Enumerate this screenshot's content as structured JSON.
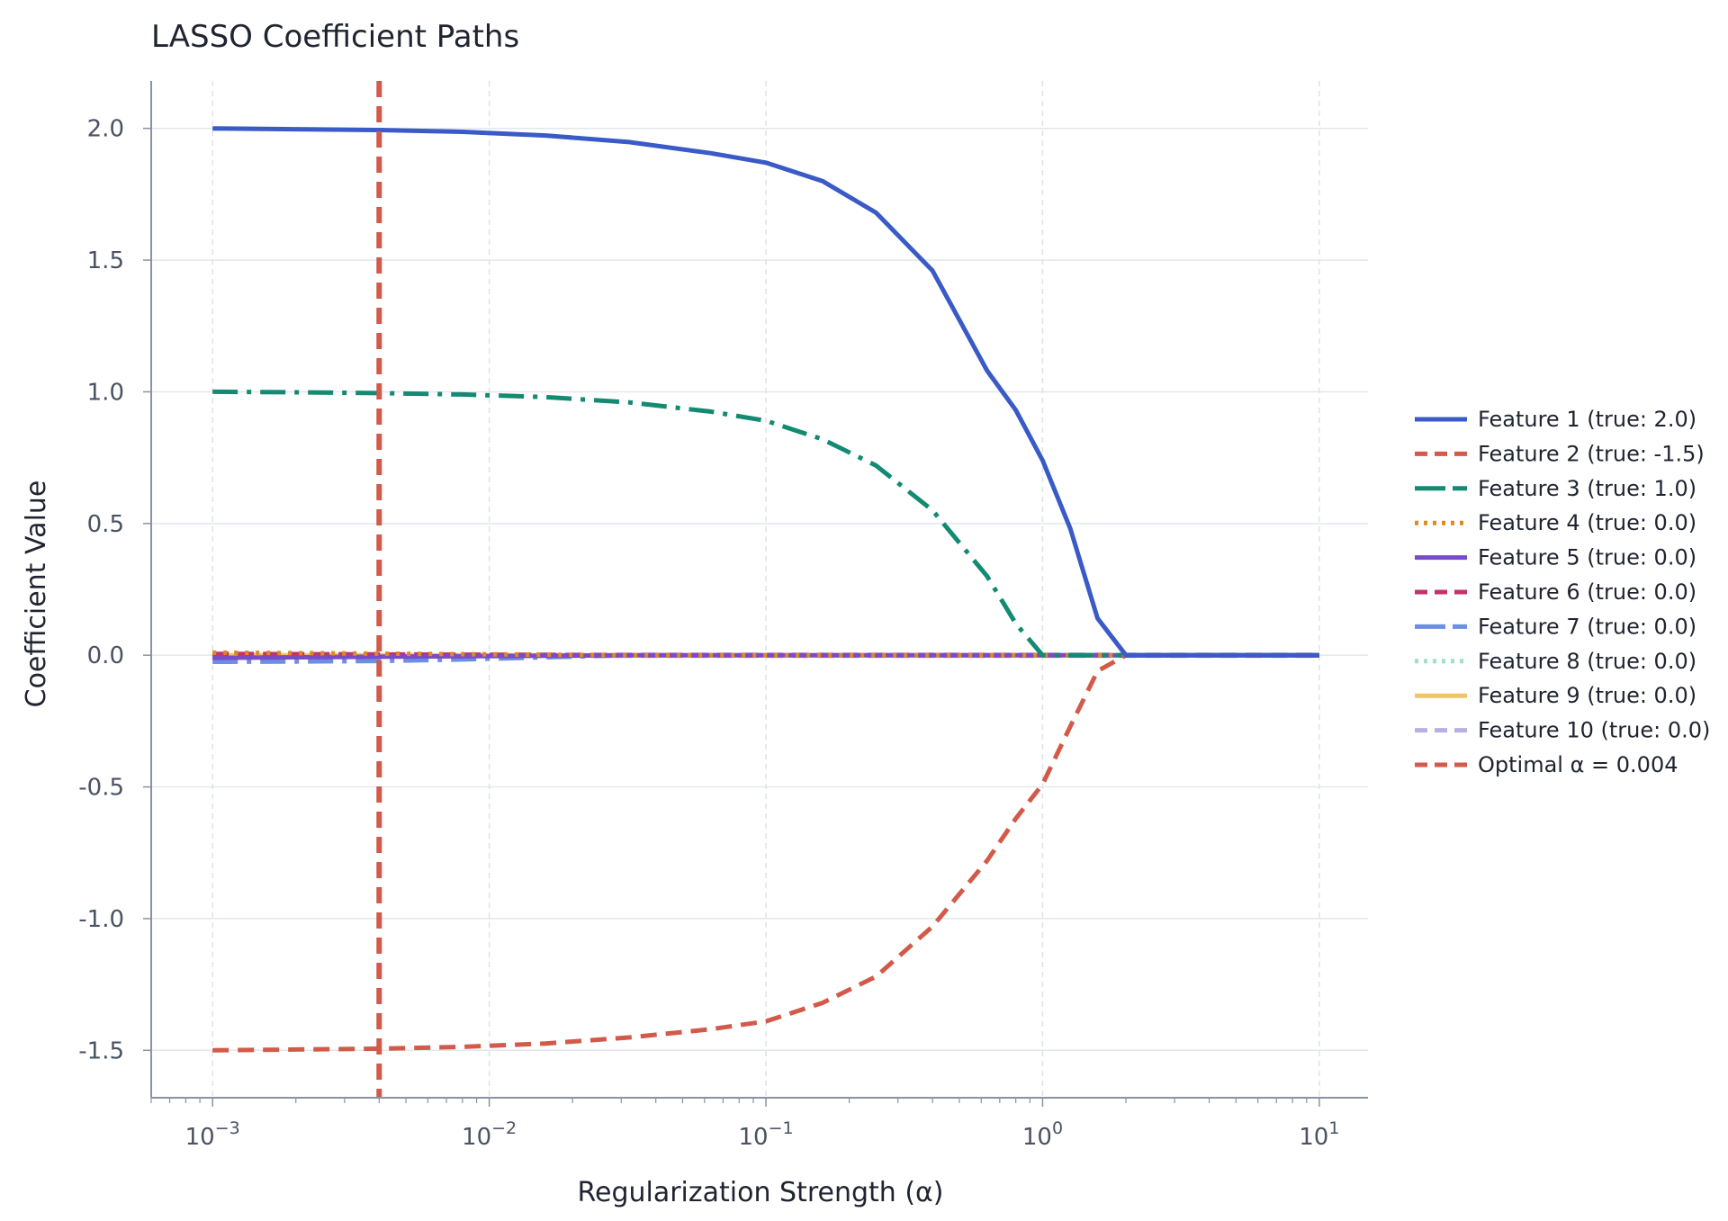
{
  "chart_data": {
    "type": "line",
    "title": "LASSO Coefficient Paths",
    "xlabel": "Regularization Strength (α)",
    "ylabel": "Coefficient Value",
    "x_scale": "log",
    "xlim": [
      0.0006,
      15
    ],
    "ylim": [
      -1.68,
      2.18
    ],
    "x_ticks": [
      0.001,
      0.01,
      0.1,
      1,
      10
    ],
    "x_tick_labels": [
      {
        "base": "10",
        "exp": "−3"
      },
      {
        "base": "10",
        "exp": "−2"
      },
      {
        "base": "10",
        "exp": "−1"
      },
      {
        "base": "10",
        "exp": "0"
      },
      {
        "base": "10",
        "exp": "1"
      }
    ],
    "y_ticks": [
      -1.5,
      -1.0,
      -0.5,
      0.0,
      0.5,
      1.0,
      1.5,
      2.0
    ],
    "y_tick_labels": [
      "-1.5",
      "-1.0",
      "-0.5",
      "0.0",
      "0.5",
      "1.0",
      "1.5",
      "2.0"
    ],
    "grid": true,
    "legend_position": "right",
    "x": [
      0.001,
      0.002,
      0.004,
      0.008,
      0.016,
      0.032,
      0.063,
      0.1,
      0.16,
      0.25,
      0.4,
      0.63,
      0.8,
      1.0,
      1.26,
      1.58,
      2.0,
      4.0,
      10.0
    ],
    "series": [
      {
        "name": "Feature 1 (true: 2.0)",
        "color": "#3a5bc7",
        "dash": "solid",
        "width": 5,
        "values": [
          2.0,
          1.997,
          1.994,
          1.987,
          1.973,
          1.948,
          1.906,
          1.87,
          1.8,
          1.68,
          1.46,
          1.08,
          0.93,
          0.74,
          0.48,
          0.14,
          0.0,
          0.0,
          0.0
        ]
      },
      {
        "name": "Feature 2 (true: -1.5)",
        "color": "#d25a4a",
        "dash": "18 10",
        "width": 5,
        "values": [
          -1.5,
          -1.497,
          -1.494,
          -1.487,
          -1.474,
          -1.451,
          -1.42,
          -1.39,
          -1.32,
          -1.22,
          -1.03,
          -0.78,
          -0.62,
          -0.49,
          -0.27,
          -0.06,
          0.0,
          0.0,
          0.0
        ]
      },
      {
        "name": "Feature 3 (true: 1.0)",
        "color": "#138a72",
        "dash": "28 10 5 10",
        "width": 5,
        "values": [
          1.0,
          0.998,
          0.995,
          0.99,
          0.98,
          0.96,
          0.925,
          0.89,
          0.82,
          0.72,
          0.55,
          0.3,
          0.12,
          0.0,
          0.0,
          0.0,
          0.0,
          0.0,
          0.0
        ]
      },
      {
        "name": "Feature 4 (true: 0.0)",
        "color": "#e08a1e",
        "dash": "4 8",
        "width": 5,
        "values": [
          0.01,
          0.008,
          0.006,
          0.004,
          0.002,
          0.0,
          0.0,
          0.0,
          0.0,
          0.0,
          0.0,
          0.0,
          0.0,
          0.0,
          0.0,
          0.0,
          0.0,
          0.0,
          0.0
        ]
      },
      {
        "name": "Feature 5 (true: 0.0)",
        "color": "#7a4bc7",
        "dash": "solid",
        "width": 5,
        "values": [
          -0.01,
          -0.008,
          -0.006,
          -0.004,
          -0.002,
          0.0,
          0.0,
          0.0,
          0.0,
          0.0,
          0.0,
          0.0,
          0.0,
          0.0,
          0.0,
          0.0,
          0.0,
          0.0,
          0.0
        ]
      },
      {
        "name": "Feature 6 (true: 0.0)",
        "color": "#c2336b",
        "dash": "18 10",
        "width": 5,
        "values": [
          0.005,
          0.004,
          0.003,
          0.002,
          0.001,
          0.0,
          0.0,
          0.0,
          0.0,
          0.0,
          0.0,
          0.0,
          0.0,
          0.0,
          0.0,
          0.0,
          0.0,
          0.0,
          0.0
        ]
      },
      {
        "name": "Feature 7 (true: 0.0)",
        "color": "#6b8ee6",
        "dash": "28 10 5 10",
        "width": 5,
        "values": [
          -0.025,
          -0.024,
          -0.022,
          -0.016,
          -0.008,
          0.0,
          0.0,
          0.0,
          0.0,
          0.0,
          0.0,
          0.0,
          0.0,
          0.0,
          0.0,
          0.0,
          0.0,
          0.0,
          0.0
        ]
      },
      {
        "name": "Feature 8 (true: 0.0)",
        "color": "#9fe0c9",
        "dash": "4 8",
        "width": 5,
        "values": [
          0.003,
          0.002,
          0.001,
          0.0,
          0.0,
          0.0,
          0.0,
          0.0,
          0.0,
          0.0,
          0.0,
          0.0,
          0.0,
          0.0,
          0.0,
          0.0,
          0.0,
          0.0,
          0.0
        ]
      },
      {
        "name": "Feature 9 (true: 0.0)",
        "color": "#f2c46a",
        "dash": "solid",
        "width": 5,
        "values": [
          0.0,
          0.0,
          0.0,
          0.0,
          0.0,
          0.0,
          0.0,
          0.0,
          0.0,
          0.0,
          0.0,
          0.0,
          0.0,
          0.0,
          0.0,
          0.0,
          0.0,
          0.0,
          0.0
        ]
      },
      {
        "name": "Feature 10 (true: 0.0)",
        "color": "#b8b0e3",
        "dash": "18 10",
        "width": 6,
        "values": [
          0.0,
          0.0,
          0.0,
          0.0,
          0.0,
          0.0,
          0.0,
          0.0,
          0.0,
          0.0,
          0.0,
          0.0,
          0.0,
          0.0,
          0.0,
          0.0,
          0.0,
          0.0,
          0.0
        ]
      }
    ],
    "vline": {
      "name": "Optimal α = 0.004",
      "x": 0.004,
      "color": "#d25a4a",
      "dash": "18 10",
      "width": 6
    }
  }
}
